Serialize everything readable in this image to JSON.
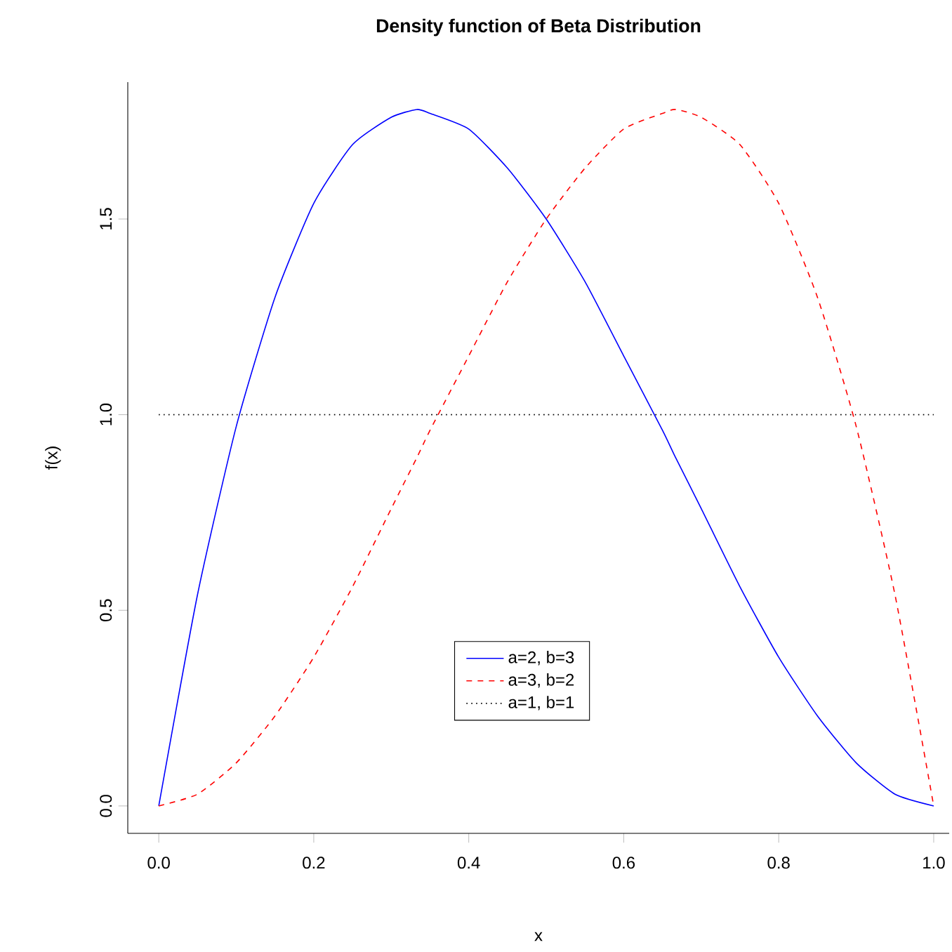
{
  "chart_data": {
    "type": "line",
    "title": "Density function of Beta Distribution",
    "xlabel": "x",
    "ylabel": "f(x)",
    "x": [
      0,
      0.05,
      0.1,
      0.15,
      0.2,
      0.25,
      0.3,
      0.333,
      0.35,
      0.4,
      0.45,
      0.5,
      0.55,
      0.6,
      0.65,
      0.667,
      0.7,
      0.75,
      0.8,
      0.85,
      0.9,
      0.95,
      1
    ],
    "series": [
      {
        "name": "a=2, b=3",
        "color": "#0000ff",
        "line_style": "solid",
        "values": [
          0,
          0.54,
          0.97,
          1.3,
          1.54,
          1.69,
          1.76,
          1.78,
          1.77,
          1.73,
          1.63,
          1.5,
          1.34,
          1.15,
          0.96,
          0.89,
          0.76,
          0.56,
          0.38,
          0.23,
          0.11,
          0.03,
          0
        ]
      },
      {
        "name": "a=3, b=2",
        "color": "#ff0000",
        "line_style": "dashed",
        "values": [
          0,
          0.03,
          0.11,
          0.23,
          0.38,
          0.56,
          0.76,
          0.89,
          0.96,
          1.15,
          1.34,
          1.5,
          1.63,
          1.73,
          1.77,
          1.78,
          1.76,
          1.69,
          1.54,
          1.3,
          0.97,
          0.54,
          0
        ]
      },
      {
        "name": "a=1, b=1",
        "color": "#000000",
        "line_style": "dotted",
        "values": [
          1,
          1,
          1,
          1,
          1,
          1,
          1,
          1,
          1,
          1,
          1,
          1,
          1,
          1,
          1,
          1,
          1,
          1,
          1,
          1,
          1,
          1,
          1
        ]
      }
    ],
    "xlim": [
      -0.04,
      1.02
    ],
    "ylim": [
      -0.07,
      1.85
    ],
    "xticks": [
      {
        "value": 0,
        "label": "0.0"
      },
      {
        "value": 0.2,
        "label": "0.2"
      },
      {
        "value": 0.4,
        "label": "0.4"
      },
      {
        "value": 0.6,
        "label": "0.6"
      },
      {
        "value": 0.8,
        "label": "0.8"
      },
      {
        "value": 1,
        "label": "1.0"
      }
    ],
    "yticks": [
      {
        "value": 0,
        "label": "0.0"
      },
      {
        "value": 0.5,
        "label": "0.5"
      },
      {
        "value": 1,
        "label": "1.0"
      },
      {
        "value": 1.5,
        "label": "1.5"
      }
    ],
    "grid": false,
    "legend": "bottom",
    "marker": "none"
  }
}
